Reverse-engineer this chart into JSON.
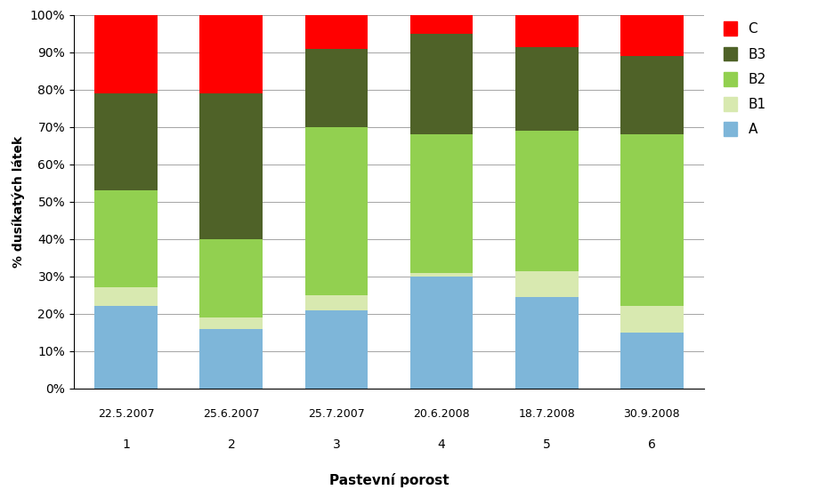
{
  "dates": [
    "22.5.2007",
    "25.6.2007",
    "25.7.2007",
    "20.6.2008",
    "18.7.2008",
    "30.9.2008"
  ],
  "numbers": [
    "1",
    "2",
    "3",
    "4",
    "5",
    "6"
  ],
  "series": {
    "A": [
      22.0,
      16.0,
      21.0,
      30.0,
      24.5,
      15.0
    ],
    "B1": [
      5.0,
      3.0,
      4.0,
      1.0,
      7.0,
      7.0
    ],
    "B2": [
      26.0,
      21.0,
      45.0,
      37.0,
      37.5,
      46.0
    ],
    "B3": [
      26.0,
      39.0,
      21.0,
      27.0,
      22.5,
      21.0
    ],
    "C": [
      21.0,
      21.0,
      9.0,
      5.0,
      8.5,
      11.0
    ]
  },
  "colors": {
    "A": "#7EB6D9",
    "B1": "#D8E9B0",
    "B2": "#92D050",
    "B3": "#4F6228",
    "C": "#FF0000"
  },
  "ylabel": "% dusíkatých látek",
  "xlabel": "Pastevní porost",
  "ylim": [
    0,
    100
  ],
  "yticks": [
    0,
    10,
    20,
    30,
    40,
    50,
    60,
    70,
    80,
    90,
    100
  ],
  "ytick_labels": [
    "0%",
    "10%",
    "20%",
    "30%",
    "40%",
    "50%",
    "60%",
    "70%",
    "80%",
    "90%",
    "100%"
  ],
  "legend_order": [
    "C",
    "B3",
    "B2",
    "B1",
    "A"
  ],
  "bar_width": 0.6
}
